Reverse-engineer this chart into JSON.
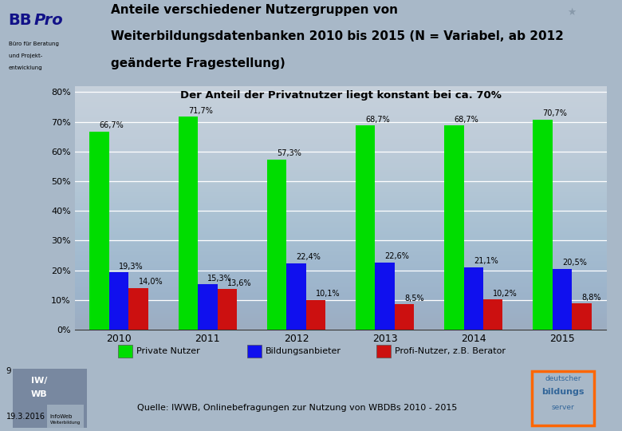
{
  "title_line1": "Anteile verschiedener Nutzergruppen von",
  "title_line2": "Weiterbildungsdatenbanken 2010 bis 2015 (N = Variabel, ab 2012",
  "title_line3": "geänderte Fragestellung)",
  "subtitle": "Der Anteil der Privatnutzer liegt konstant bei ca. 70%",
  "years": [
    "2010",
    "2011",
    "2012",
    "2013",
    "2014",
    "2015"
  ],
  "private": [
    66.7,
    71.7,
    57.3,
    68.7,
    68.7,
    70.7
  ],
  "bildung": [
    19.3,
    15.3,
    22.4,
    22.6,
    21.1,
    20.5
  ],
  "profi": [
    14.0,
    13.6,
    10.1,
    8.5,
    10.2,
    8.8
  ],
  "private_label": "66,7%",
  "private_color": "#00DD00",
  "bildung_color": "#1010EE",
  "profi_color": "#CC1010",
  "bg_outer": "#A8B8C8",
  "bg_chart": "#BCC8D4",
  "legend_labels": [
    "Private Nutzer",
    "Bildungsanbieter",
    "Profi-Nutzer, z.B. Berator"
  ],
  "source_text": "Quelle: IWWB, Onlinebefragungen zur Nutzung von WBDBs 2010 - 2015",
  "page_number": "9",
  "date_text": "19.3.2016",
  "private_labels": [
    "66,7%",
    "71,7%",
    "57,3%",
    "68,7%",
    "68,7%",
    "70,7%"
  ],
  "bildung_labels": [
    "19,3%",
    "15,3%",
    "22,4%",
    "22,6%",
    "21,1%",
    "20,5%"
  ],
  "profi_labels": [
    "14,0%",
    "13,6%",
    "10,1%",
    "8,5%",
    "10,2%",
    "8,8%"
  ]
}
